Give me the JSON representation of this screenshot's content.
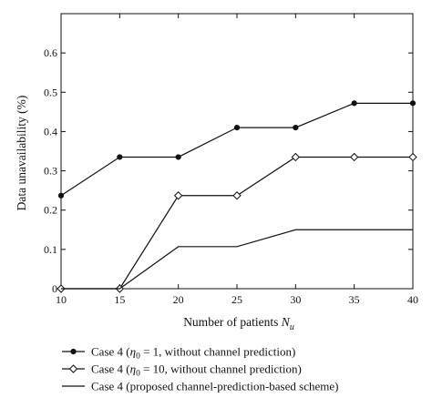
{
  "chart_data": {
    "type": "line",
    "title": "",
    "xlabel": "Number of patients N_u",
    "xlabel_main": "Number of patients ",
    "xlabel_symbol": "N",
    "xlabel_subscript": "u",
    "ylabel": "Data unavailability (%)",
    "x": [
      10,
      15,
      20,
      25,
      30,
      35,
      40
    ],
    "xlim": [
      10,
      40
    ],
    "ylim": [
      0,
      0.7
    ],
    "xticks": [
      "10",
      "15",
      "20",
      "25",
      "30",
      "35",
      "40"
    ],
    "yticks": [
      "0",
      "0.1",
      "0.2",
      "0.3",
      "0.4",
      "0.5",
      "0.6"
    ],
    "grid": false,
    "legend_placement": "below",
    "series": [
      {
        "name": "Case 4 (η0 = 1, without channel prediction)",
        "legend_parts": [
          "Case 4 (",
          "η",
          "0",
          " = 1, without channel prediction)"
        ],
        "marker": "dot",
        "values": [
          0.237,
          0.335,
          0.335,
          0.41,
          0.41,
          0.472,
          0.472
        ]
      },
      {
        "name": "Case 4 (η0 = 10, without channel prediction)",
        "legend_parts": [
          "Case 4 (",
          "η",
          "0",
          " = 10, without channel prediction)"
        ],
        "marker": "diamond",
        "values": [
          0,
          0,
          0.237,
          0.237,
          0.335,
          0.335,
          0.335
        ]
      },
      {
        "name": "Case 4 (proposed channel-prediction-based scheme)",
        "legend_parts": [
          "Case 4 (proposed channel-prediction-based scheme)"
        ],
        "marker": "none",
        "values": [
          0,
          0,
          0.107,
          0.107,
          0.15,
          0.15,
          0.15
        ]
      }
    ],
    "colors": {
      "line": "#111111",
      "background": "#ffffff"
    }
  }
}
